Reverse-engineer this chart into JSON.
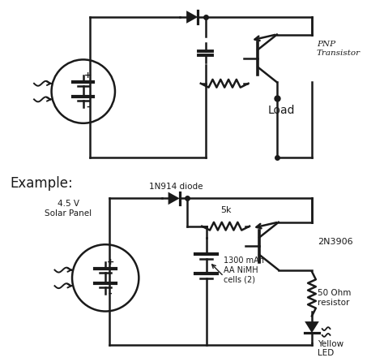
{
  "bg_color": "#ffffff",
  "line_color": "#1a1a1a",
  "lw": 1.8,
  "pnp_label": "PNP\nTransistor",
  "load_label": "Load",
  "diode1_label": "1N914 diode",
  "resistor1_label": "5k",
  "transistor2_label": "2N3906",
  "battery2_label": "1300 mAh\nAA NiMH\ncells (2)",
  "resistor2_label": "50 Ohm\nresistor",
  "led_label": "Yellow\nLED",
  "solar_label": "4.5 V\nSolar Panel",
  "example_label": "Example:"
}
